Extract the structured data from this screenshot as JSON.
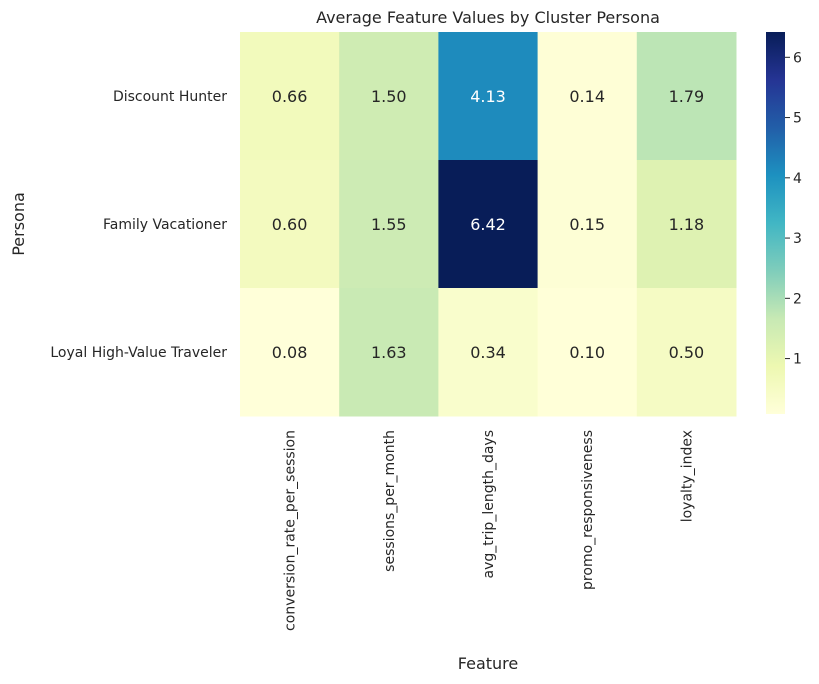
{
  "chart_data": {
    "type": "heatmap",
    "title": "Average Feature Values by Cluster Persona",
    "xlabel": "Feature",
    "ylabel": "Persona",
    "rows": [
      "Discount Hunter",
      "Family Vacationer",
      "Loyal High-Value Traveler"
    ],
    "columns": [
      "conversion_rate_per_session",
      "sessions_per_month",
      "avg_trip_length_days",
      "promo_responsiveness",
      "loyalty_index"
    ],
    "values": [
      [
        0.66,
        1.5,
        4.13,
        0.14,
        1.79
      ],
      [
        0.6,
        1.55,
        6.42,
        0.15,
        1.18
      ],
      [
        0.08,
        1.63,
        0.34,
        0.1,
        0.5
      ]
    ],
    "value_labels": [
      [
        "0.66",
        "1.50",
        "4.13",
        "0.14",
        "1.79"
      ],
      [
        "0.60",
        "1.55",
        "6.42",
        "0.15",
        "1.18"
      ],
      [
        "0.08",
        "1.63",
        "0.34",
        "0.10",
        "0.50"
      ]
    ],
    "colormap": "YlGnBu",
    "colorbar": {
      "range": [
        0.08,
        6.42
      ],
      "ticks": [
        1,
        2,
        3,
        4,
        5,
        6
      ],
      "tick_labels": [
        "1",
        "2",
        "3",
        "4",
        "5",
        "6"
      ]
    },
    "grid": false
  }
}
